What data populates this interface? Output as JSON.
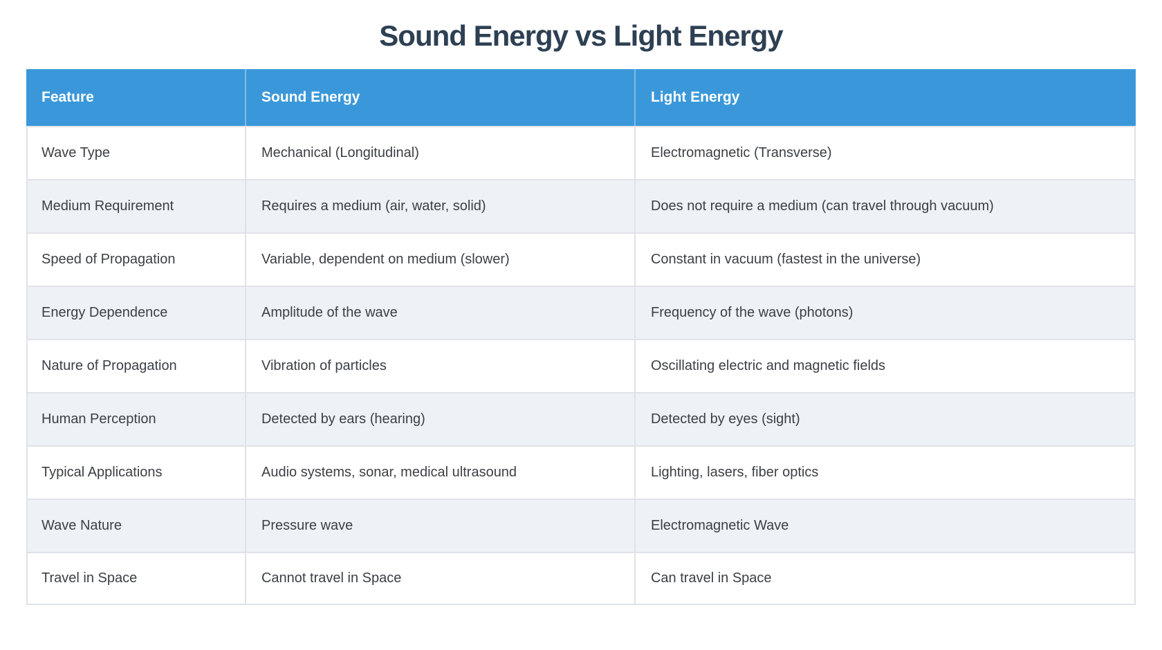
{
  "chart_data": {
    "type": "table",
    "title": "Sound Energy vs Light Energy",
    "columns": [
      "Feature",
      "Sound Energy",
      "Light Energy"
    ],
    "rows": [
      [
        "Wave Type",
        "Mechanical (Longitudinal)",
        "Electromagnetic (Transverse)"
      ],
      [
        "Medium Requirement",
        "Requires a medium (air, water, solid)",
        "Does not require a medium (can travel through vacuum)"
      ],
      [
        "Speed of Propagation",
        "Variable, dependent on medium (slower)",
        "Constant in vacuum (fastest in the universe)"
      ],
      [
        "Energy Dependence",
        "Amplitude of the wave",
        "Frequency of the wave (photons)"
      ],
      [
        "Nature of Propagation",
        "Vibration of particles",
        "Oscillating electric and magnetic fields"
      ],
      [
        "Human Perception",
        "Detected by ears (hearing)",
        "Detected by eyes (sight)"
      ],
      [
        "Typical Applications",
        "Audio systems, sonar, medical ultrasound",
        "Lighting, lasers, fiber optics"
      ],
      [
        "Wave Nature",
        "Pressure wave",
        "Electromagnetic Wave"
      ],
      [
        "Travel in Space",
        "Cannot travel in Space",
        "Can travel in Space"
      ]
    ],
    "layout": {
      "header_position": "top",
      "zebra_striping": true,
      "legend": "none",
      "grid": "cell-borders"
    }
  },
  "colors": {
    "header_bg": "#3a98da",
    "header_text": "#ffffff",
    "row_even_bg": "#eef2f7",
    "row_odd_bg": "#ffffff",
    "border": "#dfe2e7",
    "title_text": "#2e4053",
    "cell_text": "#3b4045",
    "page_bg": "#ffffff"
  }
}
